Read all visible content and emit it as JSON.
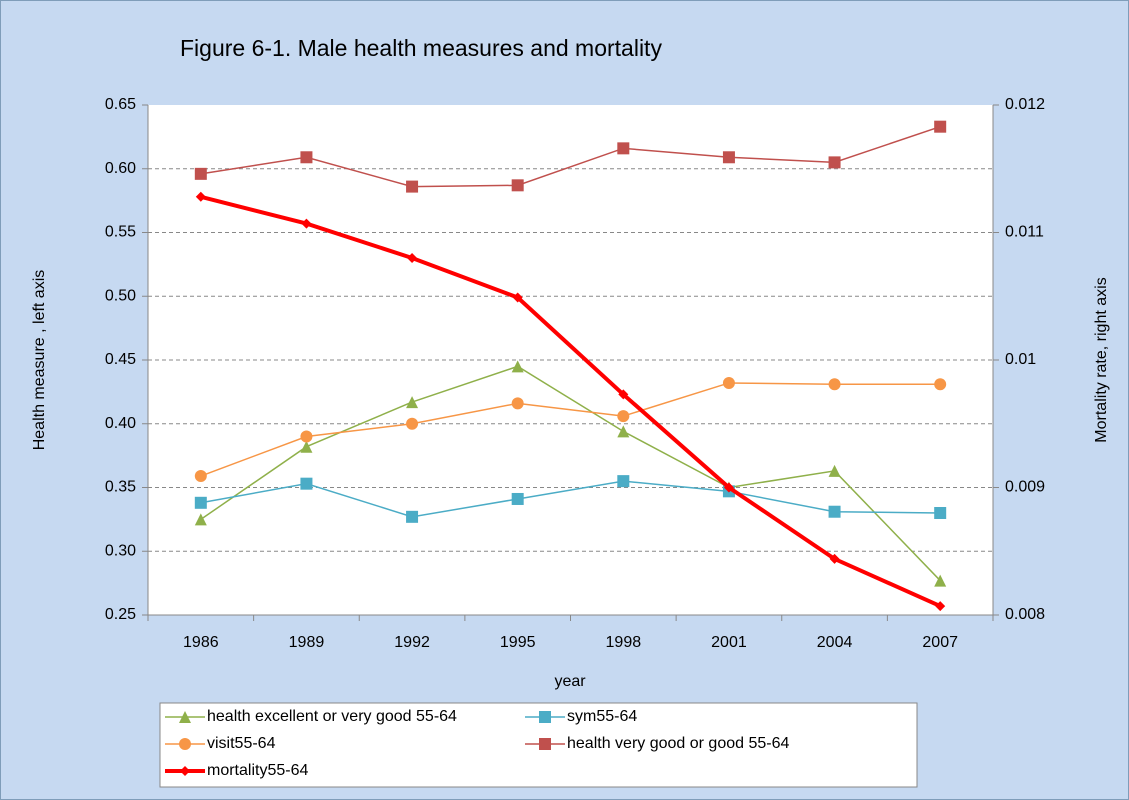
{
  "chart_data": {
    "type": "line",
    "title": "Figure 6-1. Male health measures and mortality",
    "x_label": "year",
    "y_label": "Health measure , left axis",
    "y2_label": "Mortality rate, right axis",
    "categories": [
      "1986",
      "1989",
      "1992",
      "1995",
      "1998",
      "2001",
      "2004",
      "2007"
    ],
    "ylim": [
      0.25,
      0.65
    ],
    "yticks": [
      0.25,
      {
        "value": 0.3,
        "label": "0.30"
      },
      0.35,
      {
        "value": 0.4,
        "label": "0.40"
      },
      0.45,
      {
        "value": 0.5,
        "label": "0.50"
      },
      0.55,
      {
        "value": 0.6,
        "label": "0.60"
      },
      0.65
    ],
    "y2lim": [
      0.008,
      0.012
    ],
    "y2ticks": [
      0.008,
      0.009,
      0.01,
      0.011,
      0.012
    ],
    "grid": true,
    "series": [
      {
        "name": "health excellent or very good 55-64",
        "color": "#8fb04a",
        "marker": "triangle",
        "values": [
          0.325,
          0.382,
          0.417,
          0.445,
          0.394,
          0.35,
          0.363,
          0.277
        ]
      },
      {
        "name": "sym55-64",
        "color": "#4bacc6",
        "marker": "square",
        "values": [
          0.338,
          0.353,
          0.327,
          0.341,
          0.355,
          0.347,
          0.331,
          0.33
        ]
      },
      {
        "name": "visit55-64",
        "color": "#f79646",
        "marker": "circle",
        "values": [
          0.359,
          0.39,
          0.4,
          0.416,
          0.406,
          0.432,
          0.431,
          0.431
        ]
      },
      {
        "name": "health very good or good 55-64",
        "color": "#c0504d",
        "marker": "square",
        "values": [
          0.596,
          0.609,
          0.586,
          0.587,
          0.616,
          0.609,
          0.605,
          0.633
        ]
      },
      {
        "name": "mortality55-64",
        "color": "#ff0000",
        "marker": "diamond",
        "axis": "y2",
        "values": [
          0.01128,
          0.01107,
          0.0108,
          0.01049,
          0.00973,
          0.009,
          0.00844,
          0.00807
        ]
      }
    ]
  }
}
